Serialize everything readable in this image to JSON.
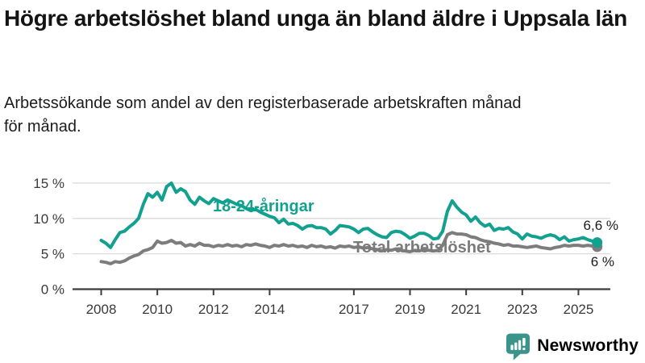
{
  "header": {
    "title": "Högre arbetslöshet bland unga än bland äldre i Uppsala län",
    "subtitle": "Arbetssökande som andel av den registerbaserade arbetskraften månad för månad."
  },
  "branding": {
    "logo_text": "Newsworthy",
    "logo_icon": "bar-chart-speech-bubble-icon",
    "brand_color": "#33918a"
  },
  "chart_data": {
    "type": "line",
    "unit": "%",
    "grid": "horizontal",
    "legend": "inline-labels",
    "x_start": 2008.0,
    "x_end": 2025.667,
    "x_step": 0.166667,
    "ylim": [
      0,
      15.5
    ],
    "yticks": [
      0,
      5,
      10,
      15
    ],
    "ytick_labels": [
      "0 %",
      "5 %",
      "10 %",
      "15 %"
    ],
    "xticks": [
      2008,
      2010,
      2012,
      2014,
      2017,
      2019,
      2021,
      2023,
      2025
    ],
    "colors": {
      "youth": "#12a08f",
      "total": "#7d7d7d",
      "gridline": "#dcdcdc",
      "axis": "#3c3c3c"
    },
    "series": [
      {
        "name": "18-24-åringar",
        "color": "#12a08f",
        "end_value": 6.6,
        "end_label": "6,6 %",
        "values": [
          6.9,
          6.5,
          5.9,
          7.0,
          8.0,
          8.2,
          8.8,
          9.3,
          10.0,
          12.0,
          13.5,
          13.0,
          13.7,
          12.6,
          14.5,
          15.0,
          13.7,
          14.2,
          13.8,
          12.6,
          12.0,
          13.0,
          12.5,
          12.1,
          12.8,
          12.5,
          12.2,
          12.6,
          12.3,
          12.0,
          11.8,
          11.4,
          11.1,
          11.3,
          10.9,
          10.6,
          10.3,
          10.1,
          9.4,
          9.9,
          9.2,
          9.3,
          9.0,
          8.5,
          8.9,
          9.0,
          8.7,
          8.7,
          8.5,
          7.8,
          8.3,
          9.0,
          8.9,
          8.8,
          8.5,
          8.0,
          8.5,
          8.6,
          8.1,
          7.7,
          7.4,
          7.3,
          8.0,
          8.2,
          8.1,
          7.7,
          7.2,
          7.5,
          7.9,
          7.9,
          7.6,
          7.1,
          7.2,
          8.2,
          11.0,
          12.5,
          11.6,
          10.9,
          10.5,
          9.6,
          10.2,
          9.4,
          8.9,
          9.2,
          8.3,
          8.6,
          8.5,
          8.7,
          8.1,
          7.8,
          7.1,
          7.8,
          7.5,
          7.4,
          7.2,
          7.5,
          7.7,
          7.5,
          7.0,
          7.4,
          6.8,
          7.0,
          7.1,
          7.3,
          7.0,
          6.8,
          6.6
        ]
      },
      {
        "name": "Total arbetslöshet",
        "color": "#7d7d7d",
        "end_value": 6.0,
        "end_label": "6 %",
        "values": [
          3.9,
          3.8,
          3.6,
          3.9,
          3.8,
          4.0,
          4.4,
          4.7,
          4.9,
          5.4,
          5.6,
          5.9,
          6.8,
          6.5,
          6.6,
          6.9,
          6.5,
          6.6,
          6.1,
          6.3,
          6.1,
          6.5,
          6.2,
          6.2,
          6.0,
          6.2,
          6.1,
          6.3,
          6.1,
          6.2,
          6.0,
          6.3,
          6.2,
          6.4,
          6.2,
          6.1,
          5.9,
          6.2,
          6.1,
          6.3,
          6.1,
          6.2,
          6.0,
          6.1,
          5.9,
          6.2,
          6.0,
          6.1,
          5.9,
          6.0,
          5.8,
          6.1,
          6.0,
          6.1,
          5.9,
          6.0,
          5.8,
          5.9,
          5.7,
          5.6,
          5.4,
          5.6,
          5.5,
          5.7,
          5.5,
          5.4,
          5.3,
          5.5,
          5.4,
          5.6,
          5.5,
          5.4,
          5.5,
          6.2,
          7.7,
          8.0,
          7.8,
          7.8,
          7.7,
          7.4,
          7.3,
          7.0,
          6.8,
          6.7,
          6.5,
          6.4,
          6.2,
          6.3,
          6.1,
          6.1,
          6.0,
          5.9,
          6.0,
          6.1,
          5.9,
          5.8,
          5.7,
          5.9,
          6.0,
          6.2,
          6.1,
          6.2,
          6.2,
          6.1,
          6.2,
          6.1,
          6.0
        ]
      }
    ]
  }
}
